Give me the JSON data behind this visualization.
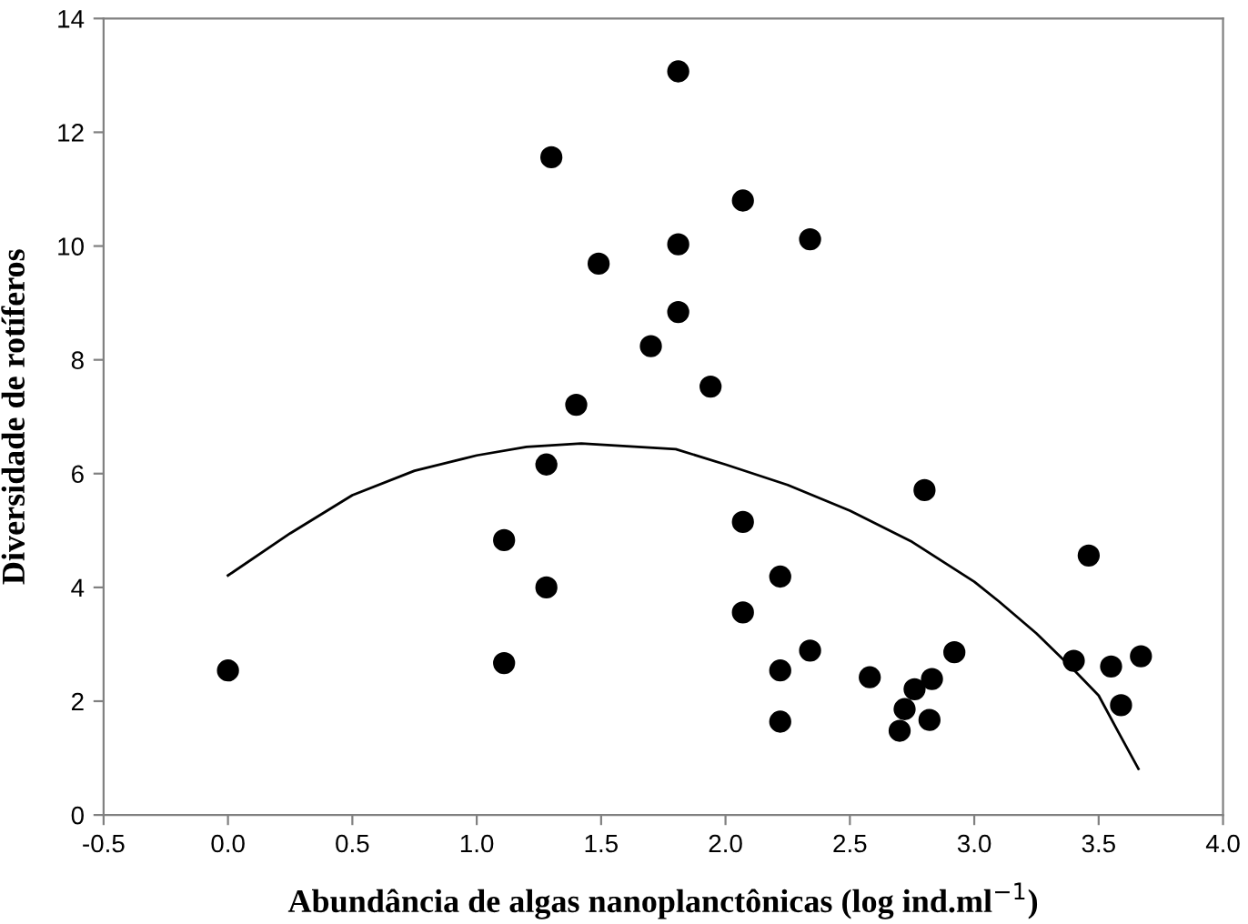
{
  "chart_data": {
    "type": "scatter",
    "xlabel": "Abundância de algas nanoplanctônicas (log ind.ml$^{−1}$)",
    "ylabel": "Diversidade de rotíferos",
    "xlim": [
      -0.5,
      4.0
    ],
    "xticks": [
      {
        "value": -0.5,
        "label": "-0.5"
      },
      {
        "value": 0,
        "label": "0.0"
      },
      0.5,
      {
        "value": 1,
        "label": "1.0"
      },
      1.5,
      {
        "value": 2,
        "label": "2.0"
      },
      2.5,
      {
        "value": 3,
        "label": "3.0"
      },
      3.5,
      {
        "value": 4,
        "label": "4.0"
      }
    ],
    "ylim": [
      0,
      14
    ],
    "yticks": [
      0,
      2,
      4,
      6,
      8,
      10,
      12,
      14
    ],
    "grid": false,
    "legend": false,
    "series": [
      {
        "color": "#000000",
        "marker": "circle",
        "x": [
          0.0,
          1.11,
          1.11,
          1.28,
          1.28,
          1.3,
          1.4,
          1.49,
          1.7,
          1.81,
          1.81,
          1.81,
          1.94,
          2.07,
          2.07,
          2.07,
          2.22,
          2.22,
          2.22,
          2.34,
          2.34,
          2.58,
          2.7,
          2.72,
          2.76,
          2.8,
          2.83,
          2.82,
          2.92,
          3.4,
          3.46,
          3.55,
          3.59,
          3.67
        ],
        "values": [
          2.54,
          2.67,
          4.83,
          4.0,
          6.16,
          11.56,
          7.21,
          9.69,
          8.24,
          13.07,
          10.03,
          8.84,
          7.53,
          10.8,
          5.15,
          3.56,
          4.19,
          2.54,
          1.64,
          10.12,
          2.89,
          2.42,
          1.48,
          1.86,
          2.21,
          5.71,
          2.39,
          1.67,
          2.86,
          2.71,
          4.56,
          2.61,
          1.93,
          2.79
        ]
      },
      {
        "type": "line",
        "color": "#000000",
        "marker": "none",
        "line_style": "solid",
        "x": [
          0.0,
          0.25,
          0.5,
          0.75,
          1.0,
          1.2,
          1.42,
          1.8,
          2.0,
          2.25,
          2.5,
          2.75,
          3.0,
          3.1,
          3.25,
          3.4,
          3.5,
          3.58,
          3.66
        ],
        "values": [
          4.21,
          4.95,
          5.62,
          6.05,
          6.32,
          6.47,
          6.53,
          6.43,
          6.16,
          5.8,
          5.35,
          4.8,
          4.1,
          3.75,
          3.19,
          2.55,
          2.1,
          1.45,
          0.81
        ]
      }
    ]
  }
}
